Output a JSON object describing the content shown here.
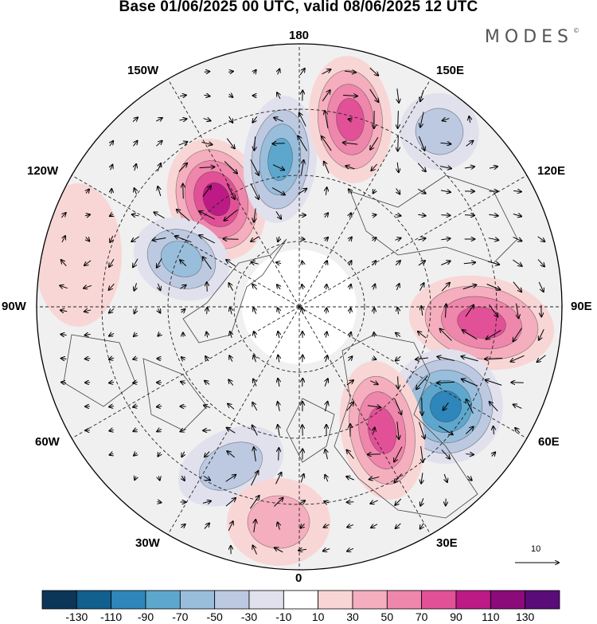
{
  "header": {
    "title": "Base 01/06/2025 00 UTC, valid 08/06/2025 12 UTC",
    "brand": "MODES",
    "brand_mark": "©"
  },
  "map": {
    "projection": "north-polar-stereographic",
    "meridian_labels": {
      "top": "180",
      "bottom": "0",
      "left": "90W",
      "right": "90E",
      "upper_left_150": "150W",
      "upper_right_150": "150E",
      "upper_left_120": "120W",
      "upper_right_120": "120E",
      "lower_left_60": "60W",
      "lower_right_60": "60E",
      "lower_left_30": "30W",
      "lower_right_30": "30E"
    },
    "reference_vector_label": "10",
    "colors": {
      "background": "#f0f0f0",
      "neutral": "#ffffff",
      "coastline": "#444444",
      "graticule": "#222222",
      "vector": "#000000"
    },
    "anomaly_centers": [
      {
        "sign": "positive",
        "value": 95,
        "meridian": "150W-120W"
      },
      {
        "sign": "negative",
        "value": -75,
        "meridian": "150W-180"
      },
      {
        "sign": "positive",
        "value": 75,
        "meridian": "180-150E"
      },
      {
        "sign": "negative",
        "value": -45,
        "meridian": "150E-120E"
      },
      {
        "sign": "negative",
        "value": -55,
        "meridian": "120W-90W"
      },
      {
        "sign": "positive",
        "value": 85,
        "meridian": "90E"
      },
      {
        "sign": "negative",
        "value": -95,
        "meridian": "60E"
      },
      {
        "sign": "positive",
        "value": 75,
        "meridian": "30E-60E"
      },
      {
        "sign": "negative",
        "value": -45,
        "meridian": "30W"
      },
      {
        "sign": "positive",
        "value": 35,
        "meridian": "0-30W"
      },
      {
        "sign": "positive",
        "value": 25,
        "meridian": "60W-90W"
      }
    ]
  },
  "colorbar": {
    "ticks": [
      "-130",
      "-110",
      "-90",
      "-70",
      "-50",
      "-30",
      "-10",
      "10",
      "30",
      "50",
      "70",
      "90",
      "110",
      "130"
    ],
    "colors": [
      "#0c3657",
      "#11608e",
      "#2e86bb",
      "#5da7cd",
      "#99bedb",
      "#bcc9e1",
      "#e1e1ee",
      "#ffffff",
      "#f9d6d6",
      "#f4aebd",
      "#ef86ab",
      "#e25197",
      "#bd1a85",
      "#8c0b7b",
      "#5a0c79"
    ]
  }
}
